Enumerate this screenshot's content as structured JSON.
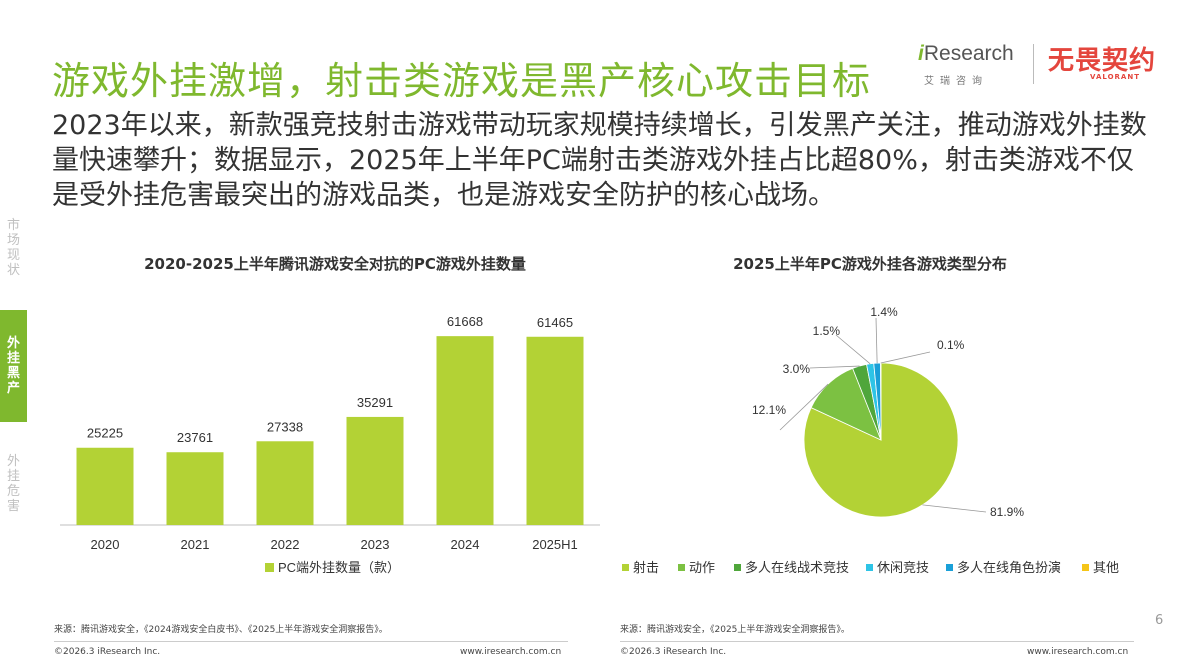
{
  "title": "游戏外挂激增，射击类游戏是黑产核心攻击目标",
  "subtitle": "2023年以来，新款强竞技射击游戏带动玩家规模持续增长，引发黑产关注，推动游戏外挂数量快速攀升；数据显示，2025年上半年PC端射击类游戏外挂占比超80%，射击类游戏不仅是受外挂危害最突出的游戏品类，也是游戏安全防护的核心战场。",
  "logos": {
    "iresearch": "Research",
    "iresearch_i": "i",
    "iresearch_cn": "艾瑞咨询",
    "wuwei": "无畏契约",
    "valorant": "VALORANT"
  },
  "sidenav": [
    {
      "label": "市场现状",
      "active": false
    },
    {
      "label": "外挂黑产",
      "active": true
    },
    {
      "label": "外挂危害",
      "active": false
    }
  ],
  "colors": {
    "accent": "#7fb82e",
    "bar": "#b3d235"
  },
  "chart_data": [
    {
      "type": "bar",
      "title": "2020-2025上半年腾讯游戏安全对抗的PC游戏外挂数量",
      "categories": [
        "2020",
        "2021",
        "2022",
        "2023",
        "2024",
        "2025H1"
      ],
      "series": [
        {
          "name": "PC端外挂数量（款）",
          "values": [
            25225,
            23761,
            27338,
            35291,
            61668,
            61465
          ],
          "color": "#b3d235"
        }
      ],
      "ylim": [
        0,
        80000
      ],
      "legend": "bottom"
    },
    {
      "type": "pie",
      "title": "2025上半年PC游戏外挂各游戏类型分布",
      "slices": [
        {
          "label": "射击",
          "value": 81.9,
          "display": "81.9%",
          "color": "#b3d235"
        },
        {
          "label": "动作",
          "value": 12.1,
          "display": "12.1%",
          "color": "#7cc142"
        },
        {
          "label": "多人在线战术竞技",
          "value": 3.0,
          "display": "3.0%",
          "color": "#4fa63b"
        },
        {
          "label": "休闲竞技",
          "value": 1.5,
          "display": "1.5%",
          "color": "#2ec4e6"
        },
        {
          "label": "多人在线角色扮演",
          "value": 1.4,
          "display": "1.4%",
          "color": "#1aa0d8"
        },
        {
          "label": "其他",
          "value": 0.1,
          "display": "0.1%",
          "color": "#f5c518"
        }
      ],
      "legend": "bottom"
    }
  ],
  "footer": {
    "left_source": "来源：腾讯游戏安全，《2024游戏安全白皮书》、《2025上半年游戏安全洞察报告》。",
    "right_source": "来源：腾讯游戏安全，《2025上半年游戏安全洞察报告》。",
    "copyright": "©2026.3 iResearch Inc.",
    "url": "www.iresearch.com.cn",
    "page": "6"
  }
}
